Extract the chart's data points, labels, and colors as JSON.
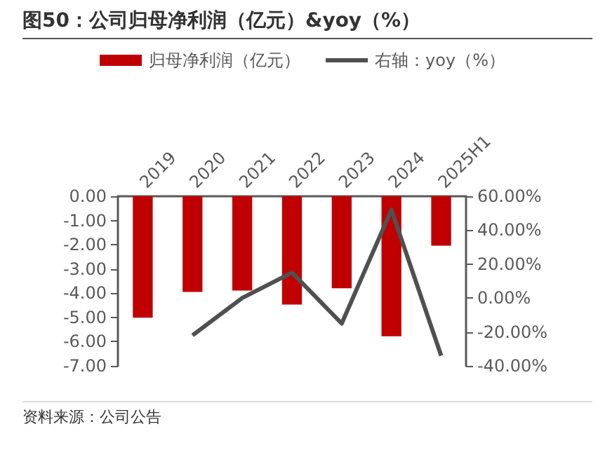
{
  "chart_data": {
    "type": "bar",
    "title": "图50：公司归母净利润（亿元）&yoy（%）",
    "categories": [
      "2019",
      "2020",
      "2021",
      "2022",
      "2023",
      "2024",
      "2025H1"
    ],
    "series": [
      {
        "name": "归母净利润（亿元）",
        "color": "#c00000",
        "values": [
          -5.01,
          -3.95,
          -3.89,
          -4.47,
          -3.8,
          -5.78,
          -2.04
        ]
      },
      {
        "name": "右轴：yoy（%）",
        "type": "line",
        "axis": "y2",
        "color": "#505050",
        "values": [
          null,
          -22,
          0,
          15,
          -15,
          52,
          -34
        ]
      }
    ],
    "ylim": [
      -7,
      0
    ],
    "yticks": [
      {
        "value": -7,
        "label": "-7.00"
      },
      {
        "value": -6,
        "label": "-6.00"
      },
      {
        "value": -5,
        "label": "-5.00"
      },
      {
        "value": -4,
        "label": "-4.00"
      },
      {
        "value": -3,
        "label": "-3.00"
      },
      {
        "value": -2,
        "label": "-2.00"
      },
      {
        "value": -1,
        "label": "-1.00"
      },
      {
        "value": 0,
        "label": "0.00"
      }
    ],
    "y2lim": [
      -40,
      60
    ],
    "y2ticks": [
      {
        "value": -40,
        "label": "-40.00%"
      },
      {
        "value": -20,
        "label": "-20.00%"
      },
      {
        "value": 0,
        "label": "0.00%"
      },
      {
        "value": 20,
        "label": "20.00%"
      },
      {
        "value": 40,
        "label": "40.00%"
      },
      {
        "value": 60,
        "label": "60.00%"
      }
    ],
    "legend": "top",
    "grid": false,
    "marker": "none",
    "line_style": "solid",
    "annotations": [
      "资料来源：公司公告"
    ]
  }
}
